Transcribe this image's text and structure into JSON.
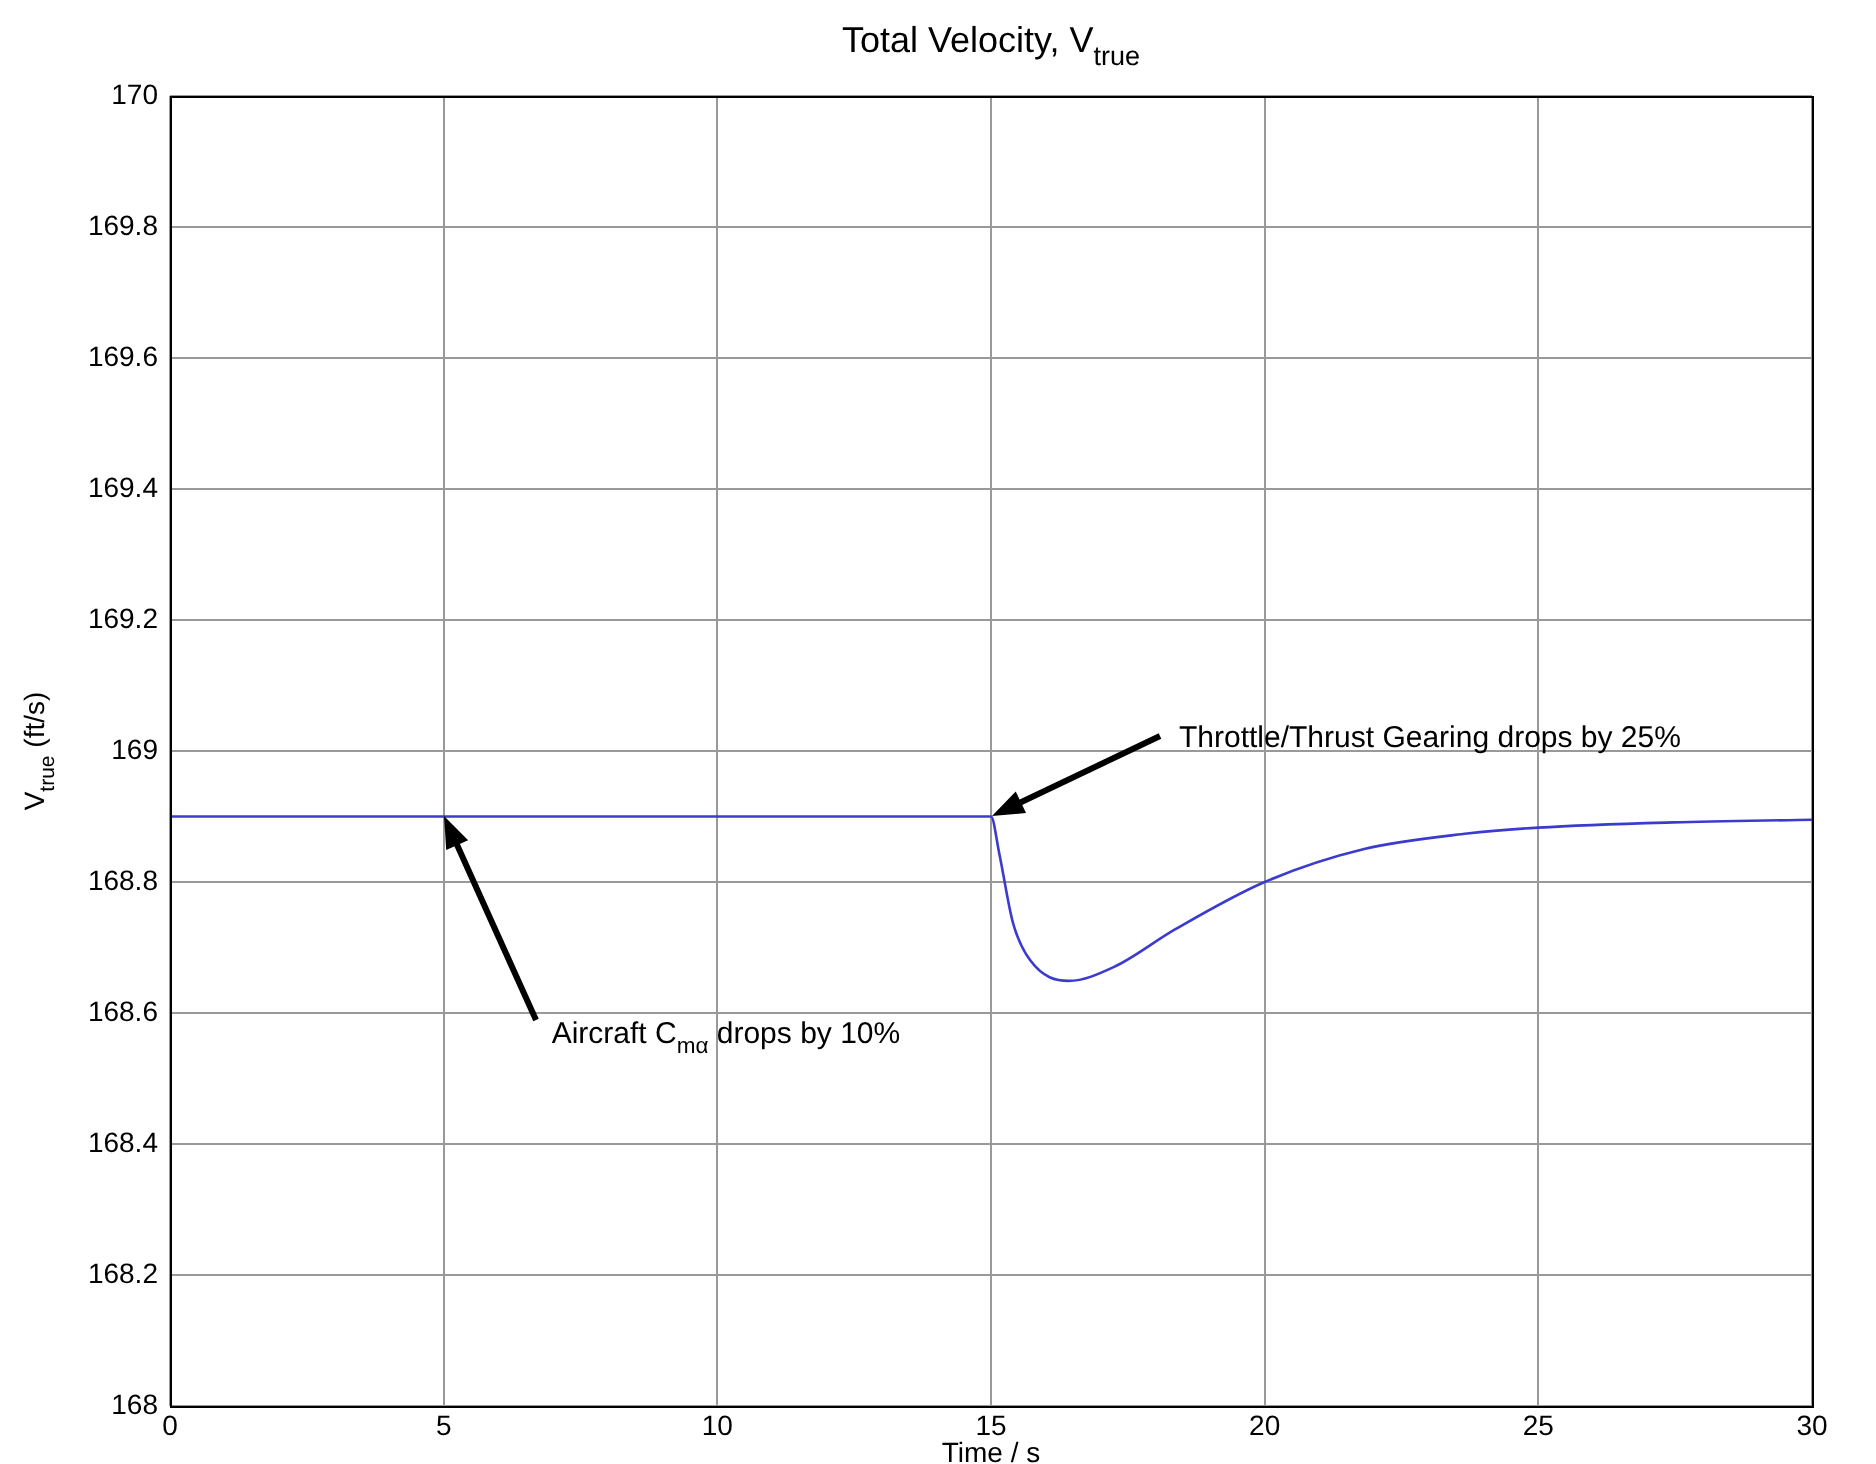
{
  "chart_data": {
    "type": "line",
    "title": "Total Velocity, V$_{true}$",
    "xlabel": "Time / s",
    "ylabel": "V$_{true}$ (ft/s)",
    "x": [
      0,
      5,
      15,
      15.15,
      15.4,
      15.72,
      16.42,
      17.24,
      18.37,
      20,
      21.8,
      23.7,
      25,
      27.46,
      30
    ],
    "series": [
      {
        "color": "#3b3bd0",
        "values": [
          168.9,
          168.9,
          168.9,
          168.844,
          168.738,
          168.68,
          168.649,
          168.67,
          168.728,
          168.8,
          168.85,
          168.874,
          168.883,
          168.891,
          168.895
        ]
      }
    ],
    "xlim": [
      0,
      30
    ],
    "xticks": [
      0,
      5,
      10,
      15,
      20,
      25,
      30
    ],
    "ylim": [
      168,
      170
    ],
    "yticks": [
      168,
      168.2,
      168.4,
      168.6,
      168.8,
      169,
      169.2,
      169.4,
      169.6,
      169.8,
      170
    ],
    "grid": true,
    "legend": false,
    "marker": "none",
    "line_style": "solid",
    "annotations": [
      "Aircraft C$_{mα}$ drops by 10%",
      "Throttle/Thrust Gearing drops by 25%"
    ]
  }
}
